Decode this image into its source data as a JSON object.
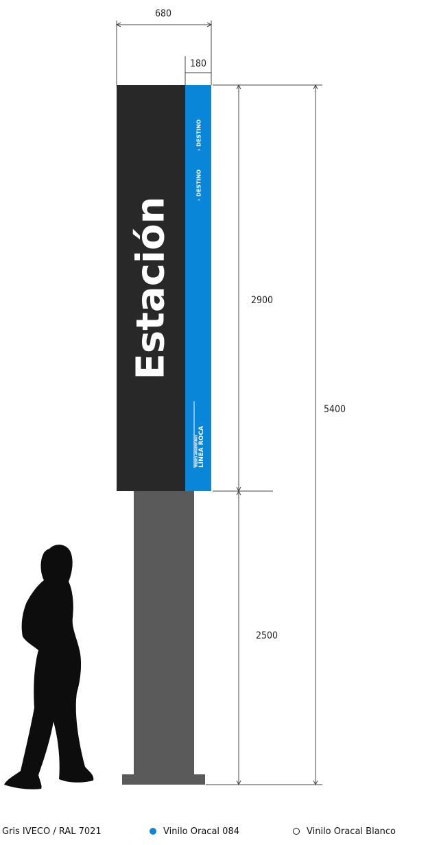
{
  "dimensions": {
    "total_width": "680",
    "strip_width": "180",
    "panel_height": "2900",
    "post_height": "2500",
    "total_height": "5400"
  },
  "sign": {
    "main_text": "Estación",
    "destination_1": "› DESTINO",
    "destination_2": "› DESTINO",
    "line_tag": "TRENES ARGENTINOS",
    "line_name": "LÍNEA ROCA"
  },
  "legend": {
    "gray_label": "Gris IVECO / RAL 7021",
    "blue_label": "Vinilo Oracal 084",
    "white_label": "Vinilo Oracal Blanco"
  },
  "colors": {
    "panel_dark": "#282828",
    "post_gray": "#5a5a5a",
    "accent_blue": "#0a86d8",
    "silhouette": "#0d0d0d"
  }
}
